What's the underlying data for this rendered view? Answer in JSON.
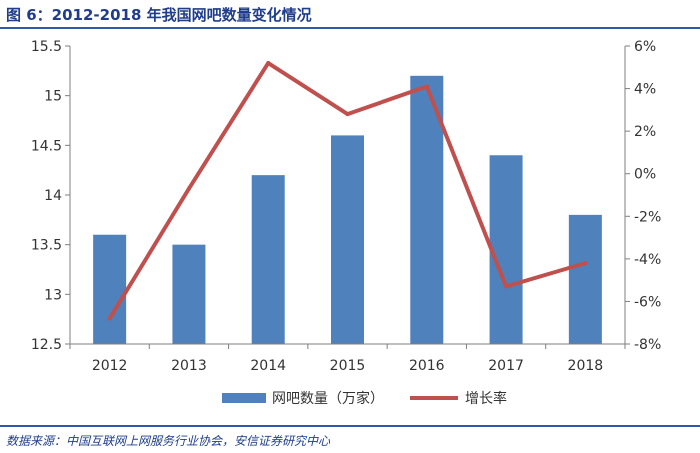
{
  "figure": {
    "title": "图 6：2012-2018 年我国网吧数量变化情况",
    "source": "数据来源：中国互联网上网服务行业协会，安信证券研究中心"
  },
  "colors": {
    "bar": "#4f81bd",
    "line": "#c0504d",
    "axis": "#7f7f7f",
    "text": "#333333",
    "title": "#1f3d8a"
  },
  "chart_data": {
    "type": "bar",
    "categories": [
      "2012",
      "2013",
      "2014",
      "2015",
      "2016",
      "2017",
      "2018"
    ],
    "series": [
      {
        "name": "网吧数量（万家）",
        "type": "bar",
        "axis": "left",
        "values": [
          13.6,
          13.5,
          14.2,
          14.6,
          15.2,
          14.4,
          13.8
        ]
      },
      {
        "name": "增长率",
        "type": "line",
        "axis": "right",
        "values": [
          -6.8,
          -0.7,
          5.2,
          2.8,
          4.1,
          -5.3,
          -4.2
        ]
      }
    ],
    "left_axis": {
      "min": 12.5,
      "max": 15.5,
      "ticks": [
        12.5,
        13,
        13.5,
        14,
        14.5,
        15,
        15.5
      ],
      "tick_labels": [
        "12.5",
        "13",
        "13.5",
        "14",
        "14.5",
        "15",
        "15.5"
      ]
    },
    "right_axis": {
      "min": -8,
      "max": 6,
      "ticks": [
        -8,
        -6,
        -4,
        -2,
        0,
        2,
        4,
        6
      ],
      "tick_labels": [
        "-8%",
        "-6%",
        "-4%",
        "-2%",
        "0%",
        "2%",
        "4%",
        "6%"
      ]
    },
    "grid": false,
    "legend": "bottom",
    "xlabel": "",
    "ylabel": ""
  }
}
